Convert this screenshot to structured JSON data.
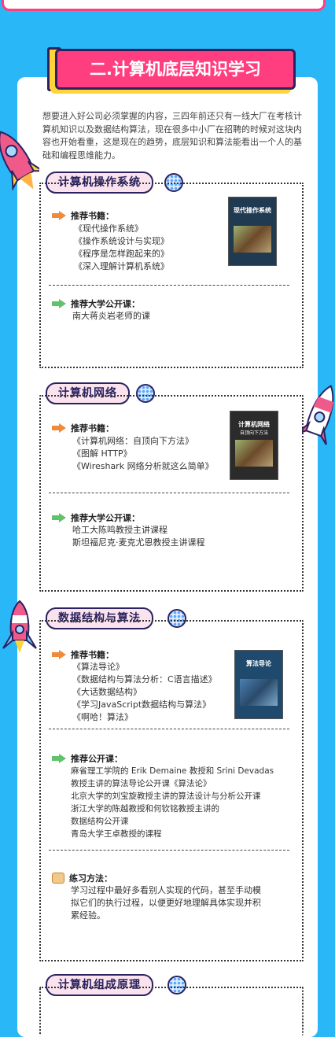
{
  "banner": {
    "title": "二.计算机底层知识学习"
  },
  "intro": "想要进入好公司必须掌握的内容，三四年前还只有一线大厂在考核计算机知识以及数据结构算法，现在很多中小厂在招聘的时候对这块内容也开始看重，这是现在的趋势，底层知识和算法能看出一个人的基础和编程思维能力。",
  "sections": [
    {
      "title": "计算机操作系统",
      "books_label": "推荐书籍：",
      "books": [
        "《现代操作系统》",
        "《操作系统设计与实现》",
        "《程序是怎样跑起来的》",
        "《深入理解计算机系统》"
      ],
      "book_cover": {
        "title": "现代操作系统"
      },
      "courses_label": "推荐大学公开课：",
      "courses": [
        "南大蒋炎岩老师的课"
      ]
    },
    {
      "title": "计算机网络",
      "books_label": "推荐书籍：",
      "books": [
        "《计算机网络：自顶向下方法》",
        "《图解 HTTP》",
        "《Wireshark 网络分析就这么简单》"
      ],
      "book_cover": {
        "title": "计算机网络",
        "subtitle": "自顶向下方法"
      },
      "courses_label": "推荐大学公开课：",
      "courses": [
        "哈工大陈鸣教授主讲课程",
        "斯坦福尼克·麦克尤恩教授主讲课程"
      ]
    },
    {
      "title": "数据结构与算法",
      "books_label": "推荐书籍：",
      "books": [
        "《算法导论》",
        "《数据结构与算法分析：C语言描述》",
        "《大话数据结构》",
        "《学习JavaScript数据结构与算法》",
        "《啊哈！算法》"
      ],
      "book_cover": {
        "title": "算法导论"
      },
      "courses_label": "推荐公开课：",
      "courses": [
        "麻省理工学院的 Erik Demaine 教授和 Srini Devadas",
        "教授主讲的算法导论公开课《算法论》",
        "北京大学的刘宝旋教授主讲的算法设计与分析公开课",
        "浙江大学的陈越教授和何钦铭教授主讲的",
        "数据结构公开课",
        "青岛大学王卓教授的课程"
      ],
      "practice_label": "练习方法：",
      "practice": [
        "学习过程中最好多看别人实现的代码，甚至手动模",
        "拟它们的执行过程，以便更好地理解具体实现并积",
        "累经验。"
      ]
    },
    {
      "title": "计算机组成原理"
    }
  ],
  "colors": {
    "background": "#29b7f7",
    "accent": "#ff3e7f",
    "navy": "#2a2360",
    "yellow": "#ffd43b"
  }
}
